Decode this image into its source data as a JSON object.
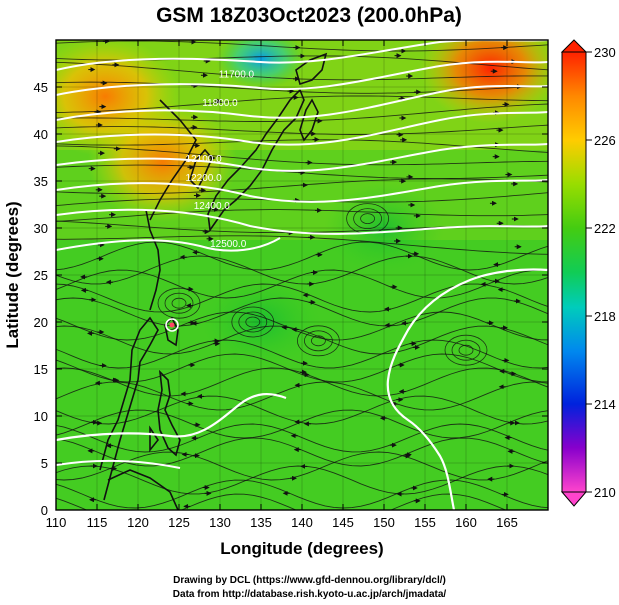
{
  "chart_data": {
    "type": "heatmap",
    "title": "GSM 18Z03Oct2023 (200.0hPa)",
    "xlabel": "Longitude (degrees)",
    "ylabel": "Latitude  (degrees)",
    "xlim": [
      110,
      170
    ],
    "ylim": [
      0,
      50
    ],
    "xticks": [
      110,
      115,
      120,
      125,
      130,
      135,
      140,
      145,
      150,
      155,
      160,
      165
    ],
    "yticks": [
      0,
      5,
      10,
      15,
      20,
      25,
      30,
      35,
      40,
      45
    ],
    "colorbar": {
      "range": [
        210,
        230
      ],
      "ticks": [
        210,
        214,
        218,
        222,
        226,
        230
      ],
      "colors": [
        "#ff44cc",
        "#5500cc",
        "#0033ee",
        "#00aaee",
        "#11cc66",
        "#22cc22",
        "#77dd11",
        "#ddcc00",
        "#ff8800",
        "#ff2200"
      ]
    },
    "temperature_hotspots": [
      {
        "lon": 116,
        "lat": 44,
        "value": 226
      },
      {
        "lon": 123,
        "lat": 37,
        "value": 227
      },
      {
        "lon": 163,
        "lat": 47,
        "value": 229
      },
      {
        "lon": 135,
        "lat": 48,
        "value": 218
      },
      {
        "lon": 135,
        "lat": 20,
        "value": 221
      },
      {
        "lon": 150,
        "lat": 30,
        "value": 221
      }
    ],
    "contour_labels": [
      {
        "text": "11700.0",
        "lon": 132,
        "lat": 46
      },
      {
        "text": "11800.0",
        "lon": 130,
        "lat": 43
      },
      {
        "text": "12100.0",
        "lon": 128,
        "lat": 37
      },
      {
        "text": "12200.0",
        "lon": 128,
        "lat": 35
      },
      {
        "text": "12400.0",
        "lon": 129,
        "lat": 32
      },
      {
        "text": "12500.0",
        "lon": 131,
        "lat": 28
      }
    ]
  },
  "credits": {
    "line1": "Drawing by DCL (https://www.gfd-dennou.org/library/dcl/)",
    "line2": "Data from http://database.rish.kyoto-u.ac.jp/arch/jmadata/"
  }
}
